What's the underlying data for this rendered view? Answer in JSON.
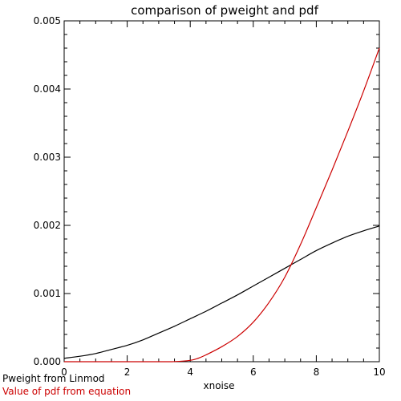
{
  "chart_data": {
    "type": "line",
    "title": "comparison of pweight and pdf",
    "xlabel": "xnoise",
    "ylabel": "",
    "xlim": [
      0,
      10
    ],
    "ylim": [
      0,
      0.005
    ],
    "x_ticks": [
      0,
      2,
      4,
      6,
      8,
      10
    ],
    "x_tick_labels": [
      "0",
      "2",
      "4",
      "6",
      "8",
      "10"
    ],
    "y_ticks": [
      0,
      0.001,
      0.002,
      0.003,
      0.004,
      0.005
    ],
    "y_tick_labels": [
      "0.000",
      "0.001",
      "0.002",
      "0.003",
      "0.004",
      "0.005"
    ],
    "grid": false,
    "legend_position": "bottom-left",
    "series": [
      {
        "name": "Pweight from Linmod",
        "color": "#000000",
        "x": [
          0,
          0.5,
          1,
          1.5,
          2,
          2.5,
          3,
          3.5,
          4,
          4.5,
          5,
          5.5,
          6,
          6.5,
          7,
          7.5,
          8,
          8.5,
          9,
          9.5,
          10
        ],
        "y": [
          5e-05,
          8e-05,
          0.00012,
          0.00018,
          0.00024,
          0.00032,
          0.00042,
          0.00052,
          0.00063,
          0.00074,
          0.00086,
          0.00098,
          0.00111,
          0.00124,
          0.00137,
          0.0015,
          0.00163,
          0.00174,
          0.00184,
          0.00192,
          0.00199
        ]
      },
      {
        "name": "Value of pdf from equation",
        "color": "#cc0000",
        "x": [
          0,
          3,
          3.5,
          4,
          4.25,
          4.5,
          5,
          5.5,
          6,
          6.5,
          7,
          7.5,
          8,
          8.5,
          9,
          9.5,
          10
        ],
        "y": [
          0,
          0,
          2e-06,
          2e-05,
          5e-05,
          0.0001,
          0.00022,
          0.00037,
          0.00058,
          0.00087,
          0.00124,
          0.00172,
          0.00226,
          0.00281,
          0.00338,
          0.00397,
          0.0046
        ]
      }
    ]
  }
}
